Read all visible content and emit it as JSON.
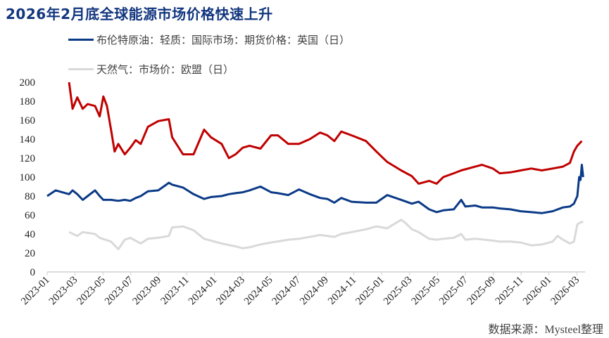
{
  "title": "2026年2月底全球能源市场价格快速上升",
  "source": "数据来源：Mysteel整理",
  "chart_data": {
    "type": "line",
    "title": "2026年2月底全球能源市场价格快速上升",
    "xlabel": "",
    "ylabel": "",
    "ylim": [
      0,
      200
    ],
    "yticks": [
      "0",
      "20",
      "40",
      "60",
      "80",
      "100",
      "120",
      "140",
      "160",
      "180",
      "200"
    ],
    "xlim": [
      "2023-01-01",
      "2026-03-01"
    ],
    "xticks": [
      "2023-01",
      "2023-03",
      "2023-05",
      "2023-07",
      "2023-09",
      "2023-11",
      "2024-01",
      "2024-03",
      "2024-05",
      "2024-07",
      "2024-09",
      "2024-11",
      "2025-01",
      "2025-03",
      "2025-05",
      "2025-07",
      "2025-09",
      "2025-11",
      "2026-01",
      "2026-03"
    ],
    "grid": false,
    "legend": "top",
    "series": [
      {
        "name": "布伦特原油：轻质：国际市场：期货价格：英国（日）",
        "color": "#0b3a87",
        "points": [
          [
            "2023-01-01",
            80
          ],
          [
            "2023-01-20",
            86
          ],
          [
            "2023-02-17",
            82
          ],
          [
            "2023-02-24",
            86
          ],
          [
            "2023-03-06",
            82
          ],
          [
            "2023-03-18",
            76
          ],
          [
            "2023-03-29",
            80
          ],
          [
            "2023-04-14",
            86
          ],
          [
            "2023-04-24",
            80
          ],
          [
            "2023-05-02",
            76
          ],
          [
            "2023-05-19",
            76
          ],
          [
            "2023-06-04",
            75
          ],
          [
            "2023-06-18",
            76
          ],
          [
            "2023-06-30",
            75
          ],
          [
            "2023-07-12",
            78
          ],
          [
            "2023-07-23",
            80
          ],
          [
            "2023-08-08",
            85
          ],
          [
            "2023-08-31",
            86
          ],
          [
            "2023-09-23",
            94
          ],
          [
            "2023-09-30",
            92
          ],
          [
            "2023-10-24",
            89
          ],
          [
            "2023-11-16",
            82
          ],
          [
            "2023-12-09",
            77
          ],
          [
            "2023-12-24",
            79
          ],
          [
            "2024-01-17",
            80
          ],
          [
            "2024-02-02",
            82
          ],
          [
            "2024-02-16",
            83
          ],
          [
            "2024-03-02",
            84
          ],
          [
            "2024-03-17",
            86
          ],
          [
            "2024-04-10",
            90
          ],
          [
            "2024-05-03",
            84
          ],
          [
            "2024-05-18",
            83
          ],
          [
            "2024-06-10",
            81
          ],
          [
            "2024-07-03",
            87
          ],
          [
            "2024-07-27",
            82
          ],
          [
            "2024-08-19",
            78
          ],
          [
            "2024-09-04",
            77
          ],
          [
            "2024-09-19",
            73
          ],
          [
            "2024-10-04",
            78
          ],
          [
            "2024-10-27",
            74
          ],
          [
            "2024-11-27",
            73
          ],
          [
            "2024-12-20",
            73
          ],
          [
            "2025-01-13",
            81
          ],
          [
            "2025-02-12",
            76
          ],
          [
            "2025-03-06",
            72
          ],
          [
            "2025-03-21",
            74
          ],
          [
            "2025-04-13",
            66
          ],
          [
            "2025-04-29",
            63
          ],
          [
            "2025-05-14",
            65
          ],
          [
            "2025-06-06",
            66
          ],
          [
            "2025-06-22",
            76
          ],
          [
            "2025-07-01",
            69
          ],
          [
            "2025-07-23",
            70
          ],
          [
            "2025-08-07",
            68
          ],
          [
            "2025-08-31",
            68
          ],
          [
            "2025-09-15",
            67
          ],
          [
            "2025-10-08",
            66
          ],
          [
            "2025-10-31",
            64
          ],
          [
            "2025-11-23",
            63
          ],
          [
            "2025-12-16",
            62
          ],
          [
            "2026-01-09",
            64
          ],
          [
            "2026-02-01",
            68
          ],
          [
            "2026-02-15",
            69
          ],
          [
            "2026-02-23",
            72
          ],
          [
            "2026-03-02",
            80
          ],
          [
            "2026-03-06",
            100
          ],
          [
            "2026-03-09",
            97
          ],
          [
            "2026-03-12",
            113
          ],
          [
            "2026-03-15",
            100
          ]
        ]
      },
      {
        "name": "天然气：市场价：欧盟（日）",
        "color": "#d9d9d9",
        "points": [
          [
            "2023-02-17",
            42
          ],
          [
            "2023-03-06",
            38
          ],
          [
            "2023-03-18",
            42
          ],
          [
            "2023-04-14",
            40
          ],
          [
            "2023-04-24",
            36
          ],
          [
            "2023-05-19",
            32
          ],
          [
            "2023-06-04",
            24
          ],
          [
            "2023-06-18",
            34
          ],
          [
            "2023-06-30",
            36
          ],
          [
            "2023-07-23",
            30
          ],
          [
            "2023-08-08",
            35
          ],
          [
            "2023-08-31",
            36
          ],
          [
            "2023-09-23",
            38
          ],
          [
            "2023-09-30",
            47
          ],
          [
            "2023-10-24",
            48
          ],
          [
            "2023-11-16",
            44
          ],
          [
            "2023-12-09",
            35
          ],
          [
            "2023-12-24",
            33
          ],
          [
            "2024-01-17",
            30
          ],
          [
            "2024-02-16",
            27
          ],
          [
            "2024-03-02",
            25
          ],
          [
            "2024-03-17",
            26
          ],
          [
            "2024-04-10",
            29
          ],
          [
            "2024-05-03",
            31
          ],
          [
            "2024-06-10",
            34
          ],
          [
            "2024-07-03",
            35
          ],
          [
            "2024-07-27",
            37
          ],
          [
            "2024-08-19",
            39
          ],
          [
            "2024-09-19",
            37
          ],
          [
            "2024-10-04",
            40
          ],
          [
            "2024-10-27",
            42
          ],
          [
            "2024-11-27",
            45
          ],
          [
            "2024-12-20",
            48
          ],
          [
            "2025-01-13",
            46
          ],
          [
            "2025-02-12",
            55
          ],
          [
            "2025-02-20",
            52
          ],
          [
            "2025-03-06",
            45
          ],
          [
            "2025-03-21",
            42
          ],
          [
            "2025-04-13",
            35
          ],
          [
            "2025-04-29",
            34
          ],
          [
            "2025-05-14",
            35
          ],
          [
            "2025-06-06",
            36
          ],
          [
            "2025-06-22",
            40
          ],
          [
            "2025-07-01",
            34
          ],
          [
            "2025-07-23",
            35
          ],
          [
            "2025-08-31",
            33
          ],
          [
            "2025-09-15",
            32
          ],
          [
            "2025-10-08",
            32
          ],
          [
            "2025-10-31",
            31
          ],
          [
            "2025-11-23",
            28
          ],
          [
            "2025-12-16",
            29
          ],
          [
            "2026-01-09",
            32
          ],
          [
            "2026-01-20",
            38
          ],
          [
            "2026-02-01",
            34
          ],
          [
            "2026-02-15",
            30
          ],
          [
            "2026-02-23",
            32
          ],
          [
            "2026-03-02",
            50
          ],
          [
            "2026-03-08",
            52
          ],
          [
            "2026-03-15",
            53
          ]
        ]
      },
      {
        "color": "#c00000",
        "points": [
          [
            "2023-02-17",
            200
          ],
          [
            "2023-02-24",
            172
          ],
          [
            "2023-03-06",
            184
          ],
          [
            "2023-03-18",
            172
          ],
          [
            "2023-03-29",
            177
          ],
          [
            "2023-04-14",
            175
          ],
          [
            "2023-04-24",
            164
          ],
          [
            "2023-05-02",
            185
          ],
          [
            "2023-05-10",
            175
          ],
          [
            "2023-05-19",
            150
          ],
          [
            "2023-05-27",
            127
          ],
          [
            "2023-06-04",
            135
          ],
          [
            "2023-06-18",
            124
          ],
          [
            "2023-06-30",
            131
          ],
          [
            "2023-07-12",
            139
          ],
          [
            "2023-07-23",
            135
          ],
          [
            "2023-08-08",
            153
          ],
          [
            "2023-08-31",
            159
          ],
          [
            "2023-09-23",
            161
          ],
          [
            "2023-09-30",
            142
          ],
          [
            "2023-10-24",
            124
          ],
          [
            "2023-11-16",
            124
          ],
          [
            "2023-12-09",
            150
          ],
          [
            "2023-12-24",
            142
          ],
          [
            "2024-01-17",
            135
          ],
          [
            "2024-02-02",
            120
          ],
          [
            "2024-02-16",
            124
          ],
          [
            "2024-03-02",
            131
          ],
          [
            "2024-03-17",
            133
          ],
          [
            "2024-04-10",
            130
          ],
          [
            "2024-05-03",
            144
          ],
          [
            "2024-05-18",
            144
          ],
          [
            "2024-06-10",
            135
          ],
          [
            "2024-07-03",
            135
          ],
          [
            "2024-07-27",
            140
          ],
          [
            "2024-08-19",
            147
          ],
          [
            "2024-09-04",
            144
          ],
          [
            "2024-09-19",
            138
          ],
          [
            "2024-10-04",
            148
          ],
          [
            "2024-10-27",
            144
          ],
          [
            "2024-11-27",
            138
          ],
          [
            "2024-12-20",
            127
          ],
          [
            "2025-01-13",
            116
          ],
          [
            "2025-02-12",
            107
          ],
          [
            "2025-03-06",
            101
          ],
          [
            "2025-03-21",
            93
          ],
          [
            "2025-04-13",
            96
          ],
          [
            "2025-04-29",
            93
          ],
          [
            "2025-05-14",
            100
          ],
          [
            "2025-06-06",
            104
          ],
          [
            "2025-06-22",
            107
          ],
          [
            "2025-07-23",
            111
          ],
          [
            "2025-08-07",
            113
          ],
          [
            "2025-08-31",
            109
          ],
          [
            "2025-09-15",
            104
          ],
          [
            "2025-10-08",
            105
          ],
          [
            "2025-10-31",
            107
          ],
          [
            "2025-11-23",
            109
          ],
          [
            "2025-12-16",
            107
          ],
          [
            "2026-01-09",
            109
          ],
          [
            "2026-02-01",
            111
          ],
          [
            "2026-02-15",
            115
          ],
          [
            "2026-02-23",
            127
          ],
          [
            "2026-03-02",
            133
          ],
          [
            "2026-03-12",
            138
          ]
        ]
      }
    ]
  }
}
